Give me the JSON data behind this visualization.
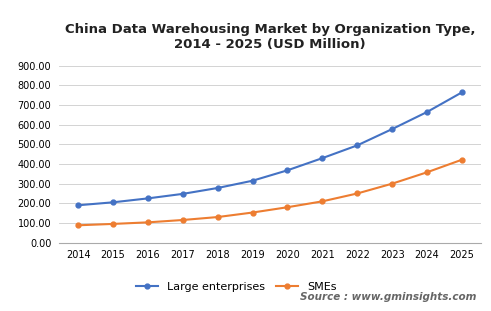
{
  "title": "China Data Warehousing Market by Organization Type,\n2014 - 2025 (USD Million)",
  "years": [
    2014,
    2015,
    2016,
    2017,
    2018,
    2019,
    2020,
    2021,
    2022,
    2023,
    2024,
    2025
  ],
  "large_enterprises": [
    190,
    205,
    225,
    248,
    278,
    315,
    368,
    430,
    495,
    578,
    665,
    765
  ],
  "smes": [
    88,
    95,
    103,
    115,
    130,
    153,
    180,
    210,
    250,
    300,
    358,
    422
  ],
  "large_color": "#4472C4",
  "sme_color": "#ED7D31",
  "ylim": [
    0,
    950
  ],
  "yticks": [
    0,
    100,
    200,
    300,
    400,
    500,
    600,
    700,
    800,
    900
  ],
  "legend_large": "Large enterprises",
  "legend_sme": "SMEs",
  "source_text": "Source : www.gminsights.com",
  "bg_color": "#FFFFFF",
  "plot_bg_color": "#FFFFFF",
  "source_bg_color": "#E8E8E8",
  "grid_color": "#CCCCCC",
  "title_fontsize": 9.5,
  "tick_fontsize": 7,
  "legend_fontsize": 8,
  "source_fontsize": 7.5
}
